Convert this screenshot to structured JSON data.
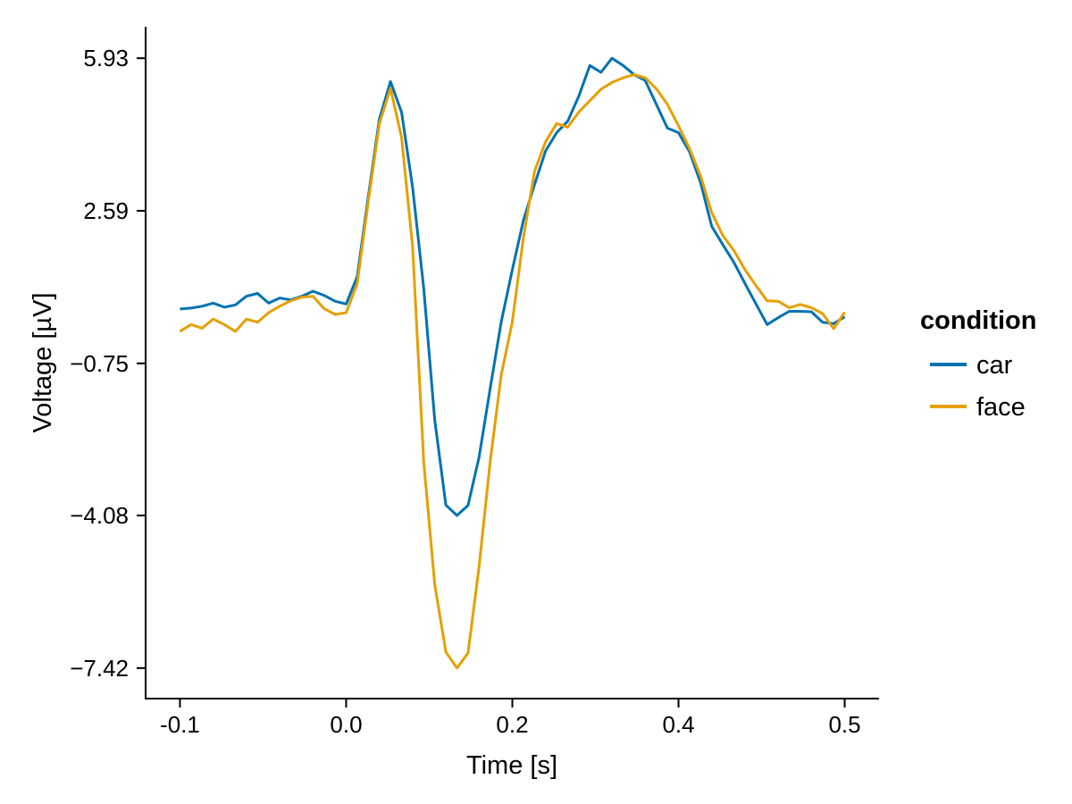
{
  "chart_data": {
    "type": "line",
    "title": "",
    "xlabel": "Time [s]",
    "ylabel": "Voltage [µV]",
    "xlim": [
      -0.131,
      0.531
    ],
    "ylim": [
      -8.088,
      6.598
    ],
    "grid": false,
    "x_ticks": {
      "positions": [
        -0.1,
        0.05,
        0.2,
        0.35,
        0.5
      ],
      "labels": [
        "-0.1",
        "0.0",
        "0.2",
        "0.4",
        "0.5"
      ]
    },
    "y_ticks": {
      "positions": [
        5.93,
        2.59,
        -0.75,
        -4.08,
        -7.42
      ],
      "labels": [
        "5.93",
        "2.59",
        "−0.75",
        "−4.08",
        "−7.42"
      ]
    },
    "legend": {
      "title": "condition",
      "position": "right",
      "entries": [
        {
          "label": "car",
          "color": "#0072B2"
        },
        {
          "label": "face",
          "color": "#E69F00"
        }
      ]
    },
    "x": [
      -0.1,
      -0.09,
      -0.08,
      -0.07,
      -0.06,
      -0.05,
      -0.04,
      -0.03,
      -0.02,
      -0.01,
      0.0,
      0.01,
      0.02,
      0.03,
      0.04,
      0.05,
      0.06,
      0.07,
      0.08,
      0.09,
      0.1,
      0.11,
      0.12,
      0.13,
      0.14,
      0.15,
      0.16,
      0.17,
      0.18,
      0.19,
      0.2,
      0.21,
      0.22,
      0.23,
      0.24,
      0.25,
      0.26,
      0.27,
      0.28,
      0.29,
      0.3,
      0.31,
      0.32,
      0.33,
      0.34,
      0.35,
      0.36,
      0.37,
      0.38,
      0.39,
      0.4,
      0.41,
      0.42,
      0.43,
      0.44,
      0.45,
      0.46,
      0.47,
      0.48,
      0.49,
      0.5
    ],
    "series": [
      {
        "name": "car",
        "color": "#0072B2",
        "values": [
          0.44,
          0.46,
          0.5,
          0.57,
          0.48,
          0.53,
          0.72,
          0.78,
          0.57,
          0.68,
          0.64,
          0.72,
          0.83,
          0.74,
          0.61,
          0.55,
          1.15,
          2.9,
          4.6,
          5.42,
          4.75,
          3.1,
          0.9,
          -2.0,
          -3.85,
          -4.08,
          -3.86,
          -2.8,
          -1.3,
          0.16,
          1.3,
          2.38,
          3.16,
          3.9,
          4.3,
          4.55,
          5.1,
          5.77,
          5.62,
          5.93,
          5.77,
          5.57,
          5.44,
          4.92,
          4.4,
          4.3,
          3.88,
          3.2,
          2.25,
          1.85,
          1.46,
          1.0,
          0.55,
          0.1,
          0.25,
          0.39,
          0.39,
          0.38,
          0.15,
          0.12,
          0.27
        ]
      },
      {
        "name": "face",
        "color": "#E69F00",
        "values": [
          -0.05,
          0.1,
          0.02,
          0.22,
          0.1,
          -0.05,
          0.22,
          0.15,
          0.36,
          0.5,
          0.62,
          0.7,
          0.72,
          0.45,
          0.32,
          0.36,
          1.0,
          2.8,
          4.5,
          5.27,
          4.2,
          1.8,
          -2.9,
          -5.6,
          -7.07,
          -7.42,
          -7.09,
          -5.2,
          -2.9,
          -1.0,
          0.16,
          2.0,
          3.45,
          4.1,
          4.5,
          4.42,
          4.75,
          5.0,
          5.25,
          5.4,
          5.5,
          5.57,
          5.5,
          5.26,
          4.92,
          4.45,
          3.95,
          3.35,
          2.55,
          2.05,
          1.72,
          1.3,
          0.95,
          0.62,
          0.61,
          0.47,
          0.54,
          0.47,
          0.34,
          0.01,
          0.37
        ]
      }
    ]
  }
}
